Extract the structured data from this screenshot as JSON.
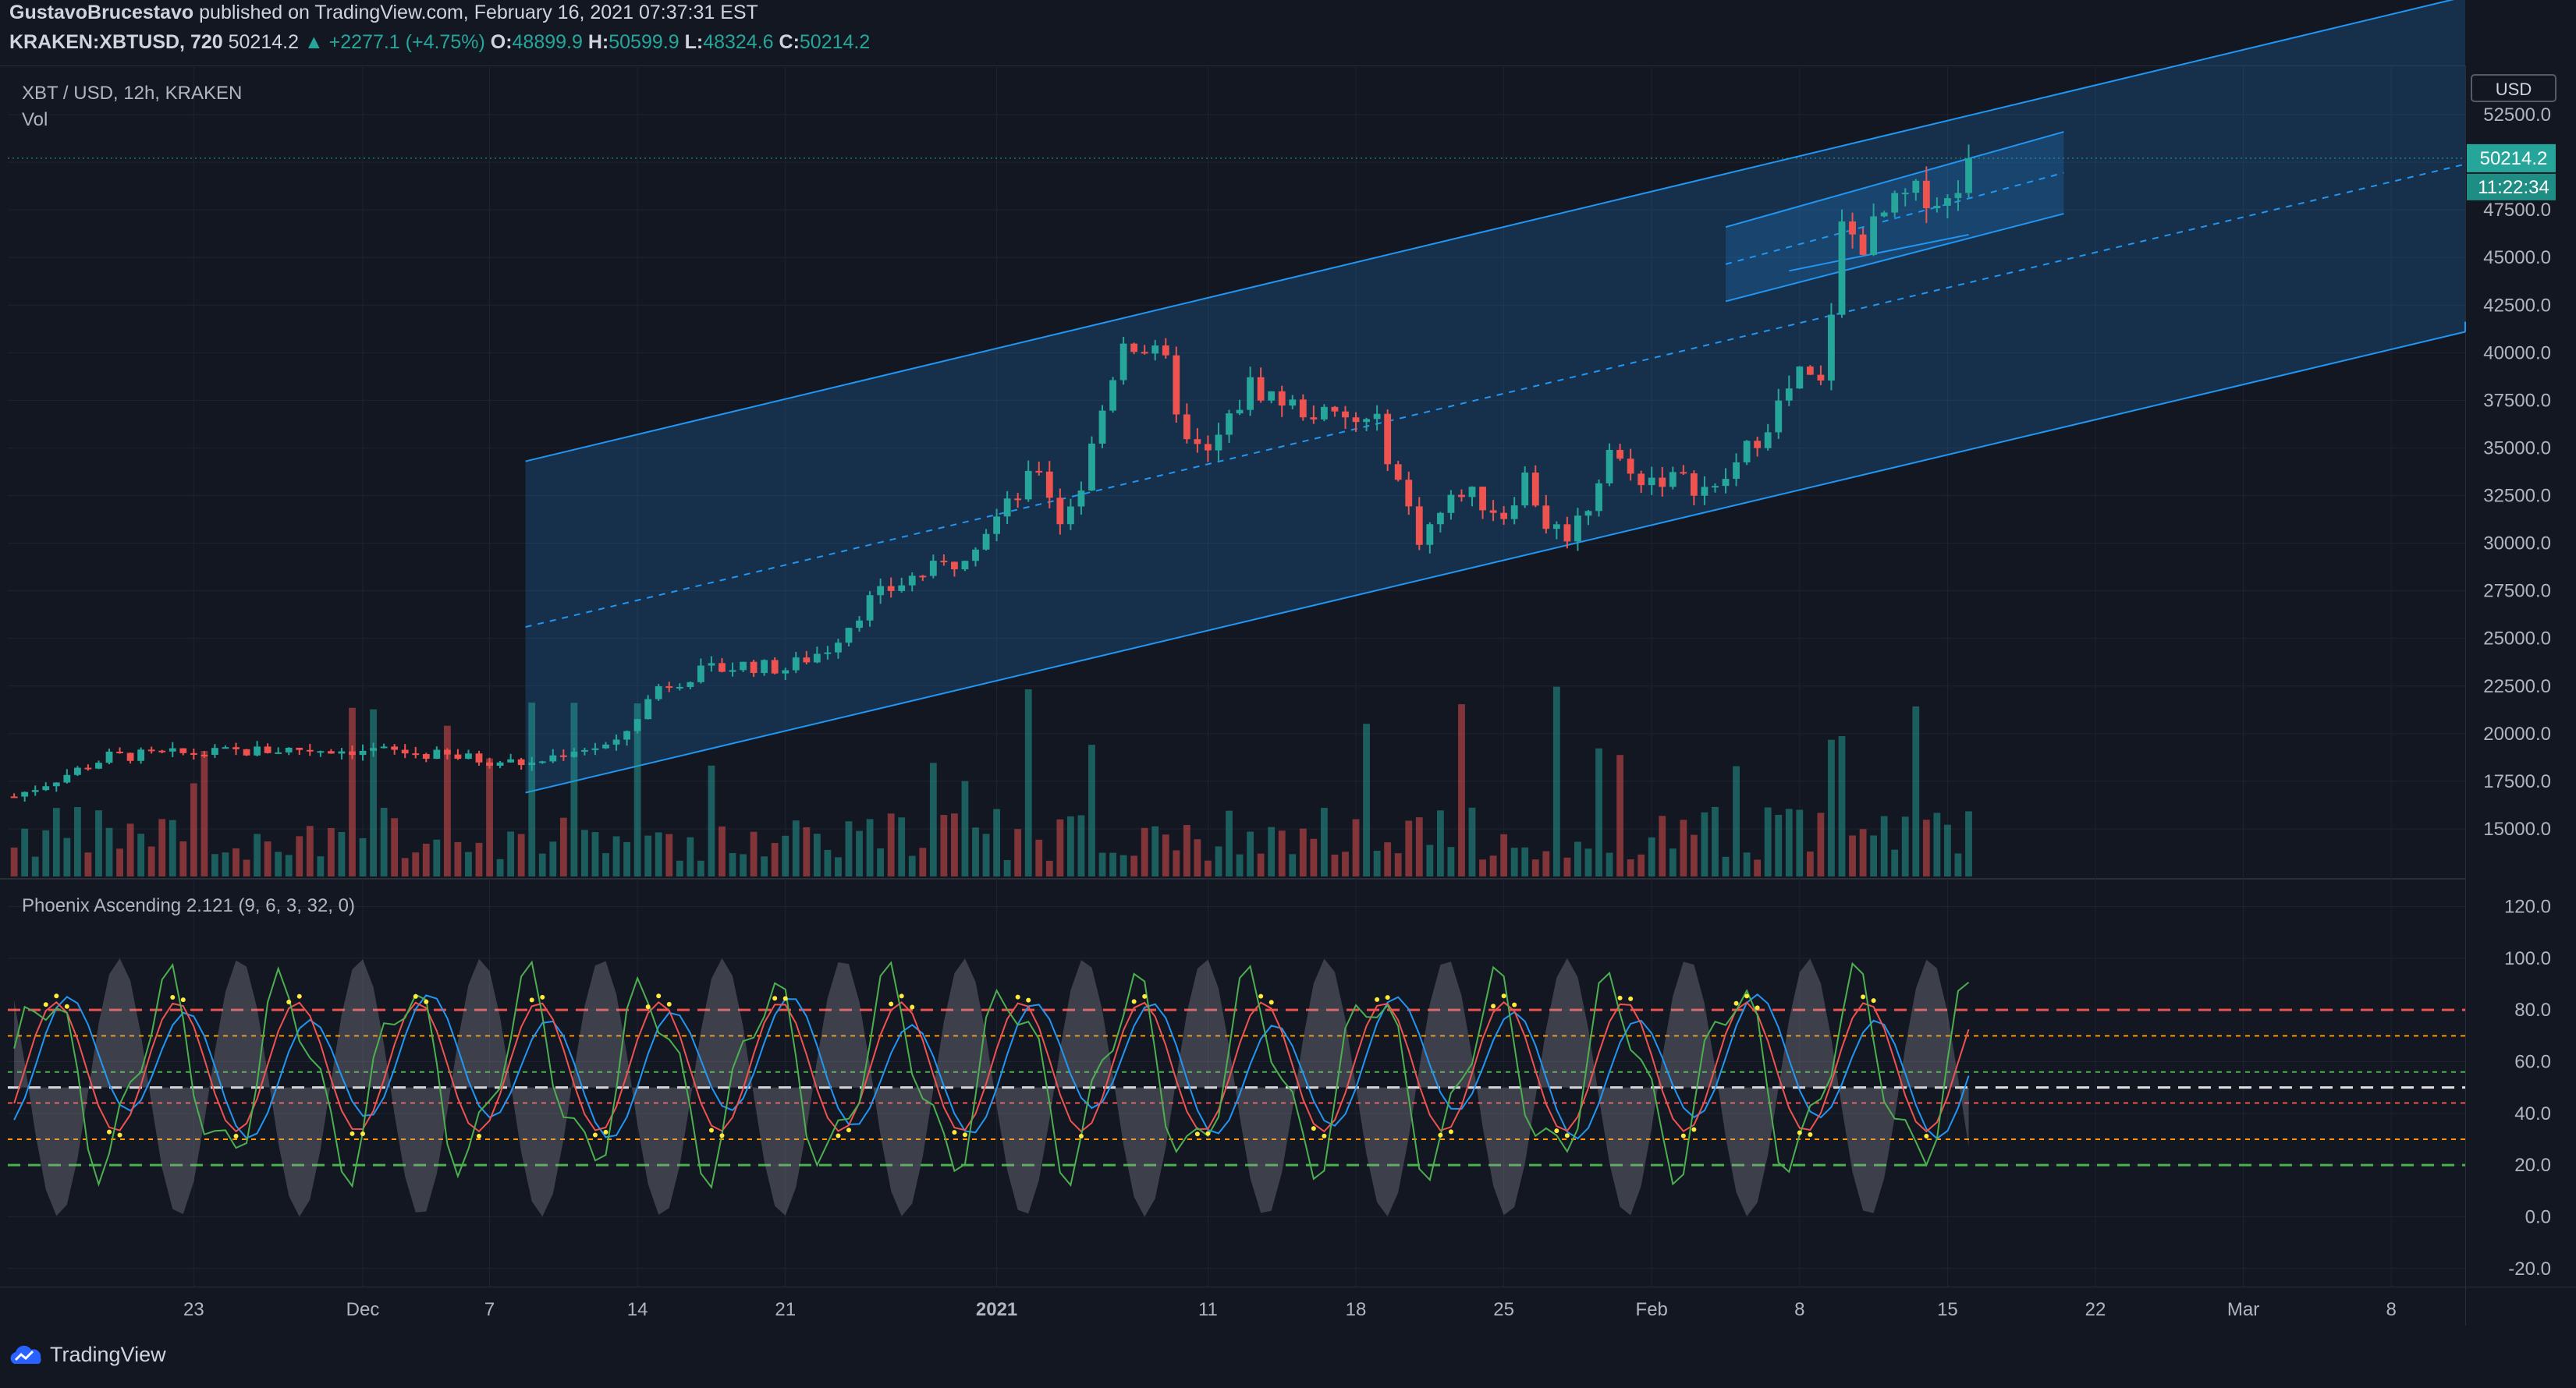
{
  "header": {
    "author": "GustavoBrucestavo",
    "published": "published on TradingView.com, February 16, 2021 07:37:31 EST",
    "symbol": "KRAKEN:XBTUSD, 720",
    "last": "50214.2",
    "change": "▲ +2277.1 (+4.75%)",
    "o_label": "O:",
    "o": "48899.9",
    "h_label": "H:",
    "h": "50599.9",
    "l_label": "L:",
    "l": "48324.6",
    "c_label": "C:",
    "c": "50214.2"
  },
  "legend": {
    "pair": "XBT / USD, 12h, KRAKEN",
    "vol": "Vol",
    "indicator": "Phoenix Ascending 2.121 (9, 6, 3, 32, 0)"
  },
  "price_scale": {
    "currency": "USD",
    "last_price": "50214.2",
    "countdown": "11:22:34"
  },
  "footer": {
    "brand": "TradingView"
  },
  "colors": {
    "up": "#26a69a",
    "down": "#ef5350",
    "channel": "#2196f3",
    "bg": "#131722"
  },
  "chart_data": [
    {
      "type": "candlestick",
      "interval": "12h",
      "ylim": [
        12500,
        55000
      ],
      "y_ticks": [
        "52500.0",
        "50000.0",
        "47500.0",
        "45000.0",
        "42500.0",
        "40000.0",
        "37500.0",
        "35000.0",
        "32500.0",
        "30000.0",
        "27500.0",
        "25000.0",
        "22500.0",
        "20000.0",
        "17500.0",
        "15000.0"
      ],
      "x_ticks": [
        "23",
        "Dec",
        "7",
        "14",
        "21",
        "2021",
        "11",
        "18",
        "25",
        "Feb",
        "8",
        "15",
        "22",
        "Mar",
        "8"
      ],
      "x_tick_days": [
        -38,
        -30,
        -24,
        -17,
        -10,
        0,
        10,
        17,
        24,
        31,
        38,
        45,
        52,
        59,
        66
      ],
      "xlim_days": [
        -46.8,
        69.5
      ],
      "close_path_days": [
        -46.5,
        -42,
        -37,
        -33,
        -29,
        -25,
        -22,
        -20,
        -18,
        -16,
        -14,
        -12,
        -10,
        -8,
        -6,
        -4,
        -2,
        1,
        2,
        3,
        4,
        5,
        6,
        7,
        8,
        9,
        10,
        12,
        14,
        16,
        18,
        20,
        22,
        24,
        25,
        26,
        27,
        28,
        29,
        30,
        32,
        34,
        36,
        38,
        39,
        40,
        41,
        42,
        43,
        44,
        45,
        46
      ],
      "close_path_values": [
        16700,
        18800,
        19000,
        19200,
        19100,
        18700,
        18400,
        19200,
        19400,
        22500,
        23200,
        23600,
        23400,
        24500,
        27000,
        28200,
        29000,
        32500,
        34000,
        31200,
        33000,
        37000,
        40800,
        40200,
        39300,
        35200,
        34600,
        38300,
        37200,
        36500,
        36200,
        30300,
        32800,
        31500,
        33500,
        31000,
        30500,
        32000,
        35000,
        33500,
        33400,
        32700,
        35600,
        38800,
        38200,
        46500,
        45800,
        47200,
        48100,
        48400,
        47900,
        50214.2
      ],
      "price_line": 50214.2,
      "channels": [
        {
          "name": "Ascending channel",
          "start_day": -22.3,
          "end_day": 69.5,
          "upper": [
            34300,
            58700
          ],
          "lower": [
            16900,
            41100
          ],
          "mid": [
            25600,
            49900
          ]
        },
        {
          "name": "Inner channel",
          "start_day": 34.5,
          "end_day": 50.5,
          "upper": [
            46600,
            51600
          ],
          "lower": [
            42700,
            47300
          ],
          "mid": [
            44650,
            49450
          ]
        }
      ]
    },
    {
      "type": "bar",
      "name": "Vol",
      "note": "relative volume bars, no printed scale"
    },
    {
      "type": "line",
      "name": "Phoenix Ascending 2.121 (9, 6, 3, 32, 0)",
      "ylim": [
        -27,
        128
      ],
      "y_ticks": [
        "120.0",
        "100.0",
        "80.0",
        "60.0",
        "40.0",
        "20.0",
        "0.0",
        "-20.0"
      ],
      "levels": [
        {
          "value": 80,
          "color": "#ef5350",
          "style": "dashed"
        },
        {
          "value": 70,
          "color": "#ff9800",
          "style": "dashed"
        },
        {
          "value": 56,
          "color": "#4caf50",
          "style": "dashed"
        },
        {
          "value": 50,
          "color": "#e0e0e0",
          "style": "dashed"
        },
        {
          "value": 44,
          "color": "#ef5350",
          "style": "dashed"
        },
        {
          "value": 30,
          "color": "#ff9800",
          "style": "dashed"
        },
        {
          "value": 20,
          "color": "#4caf50",
          "style": "dashed"
        }
      ]
    }
  ]
}
